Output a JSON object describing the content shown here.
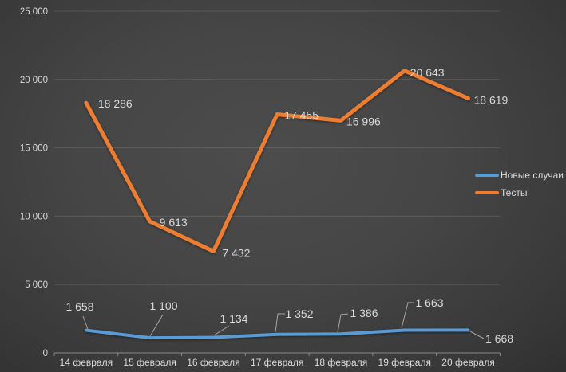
{
  "chart_data": {
    "type": "line",
    "title": "",
    "categories": [
      "14 февраля",
      "15 февраля",
      "16 февраля",
      "17 февраля",
      "18 февраля",
      "19 февраля",
      "20 февраля"
    ],
    "series": [
      {
        "name": "Новые случаи",
        "color": "#5B9BD5",
        "values": [
          1658,
          1100,
          1134,
          1352,
          1386,
          1663,
          1668
        ]
      },
      {
        "name": "Тесты",
        "color": "#ED7D31",
        "values": [
          18286,
          9613,
          7432,
          17455,
          16996,
          20643,
          18619
        ]
      }
    ],
    "y_axis": {
      "min": 0,
      "max": 25000,
      "step": 5000,
      "tick_labels": [
        "0",
        "5 000",
        "10 000",
        "15 000",
        "20 000",
        "25 000"
      ]
    },
    "grid": true,
    "legend_position": "right",
    "data_labels": true
  },
  "colors": {
    "background_center": "#4a4a4a",
    "background_edge": "#272727",
    "text": "#d9d9d9",
    "gridline": "#565656",
    "axis": "#8a8a8a",
    "leader_line": "#a6a6a6"
  }
}
